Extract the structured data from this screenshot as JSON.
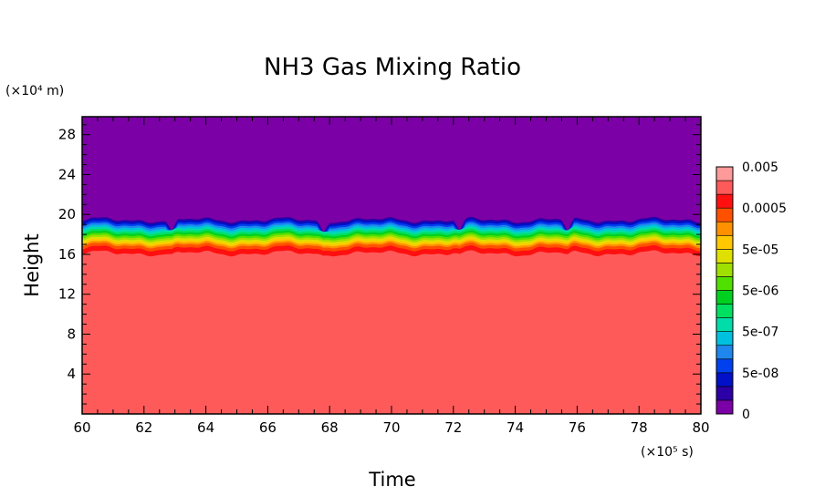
{
  "chart_data": {
    "type": "heatmap",
    "title": "NH3 Gas Mixing Ratio",
    "xlabel": "Time",
    "ylabel": "Height",
    "x_unit": "(×10⁵ s)",
    "y_unit": "(×10⁴ m)",
    "xlim": [
      60,
      80
    ],
    "ylim": [
      0,
      29.8
    ],
    "x_ticks": [
      "60",
      "62",
      "64",
      "66",
      "68",
      "70",
      "72",
      "74",
      "76",
      "78",
      "80"
    ],
    "y_ticks": [
      "4",
      "8",
      "12",
      "16",
      "20",
      "24",
      "28"
    ],
    "colorbar_labels": [
      "0",
      "5e-08",
      "5e-07",
      "5e-06",
      "5e-05",
      "0.0005",
      "0.005"
    ],
    "colors": [
      "#7b00a6",
      "#2b00a6",
      "#0011c8",
      "#0040ee",
      "#1f86ee",
      "#00c0e0",
      "#00dcaa",
      "#00e060",
      "#00d020",
      "#50e000",
      "#a0e000",
      "#e0e000",
      "#ffc800",
      "#ff9000",
      "#ff5000",
      "#ff1010",
      "#ff5a5a",
      "#ff9a9a"
    ],
    "layers": [
      {
        "name": "mixing-ratio-0.005",
        "top": 16.1,
        "color": "#ff5a5a"
      },
      {
        "name": "mixing-ratio-0.002",
        "top": 16.6,
        "color": "#ff1010"
      },
      {
        "name": "mixing-ratio-0.001",
        "top": 16.9,
        "color": "#ff5000"
      },
      {
        "name": "mixing-ratio-0.0005",
        "top": 17.1,
        "color": "#ff9000"
      },
      {
        "name": "mixing-ratio-0.0002",
        "top": 17.3,
        "color": "#ffc800"
      },
      {
        "name": "mixing-ratio-0.0001",
        "top": 17.5,
        "color": "#e0e000"
      },
      {
        "name": "mixing-ratio-5e-05",
        "top": 17.7,
        "color": "#a0e000"
      },
      {
        "name": "mixing-ratio-2e-05",
        "top": 17.9,
        "color": "#50e000"
      },
      {
        "name": "mixing-ratio-1e-05",
        "top": 18.1,
        "color": "#00d020"
      },
      {
        "name": "mixing-ratio-5e-06",
        "top": 18.3,
        "color": "#00e060"
      },
      {
        "name": "mixing-ratio-2e-06",
        "top": 18.5,
        "color": "#00dcaa"
      },
      {
        "name": "mixing-ratio-1e-06",
        "top": 18.7,
        "color": "#00c0e0"
      },
      {
        "name": "mixing-ratio-5e-07",
        "top": 18.9,
        "color": "#1f86ee"
      },
      {
        "name": "mixing-ratio-1e-07",
        "top": 19.1,
        "color": "#0040ee"
      },
      {
        "name": "mixing-ratio-5e-08",
        "top": 19.3,
        "color": "#0011c8"
      },
      {
        "name": "mixing-ratio-1e-08",
        "top": 19.45,
        "color": "#2b00a6"
      }
    ],
    "background_color": "#7b00a6",
    "dips": [
      62.9,
      67.8,
      72.2,
      75.7
    ],
    "colorbar": "right",
    "grid": false
  }
}
